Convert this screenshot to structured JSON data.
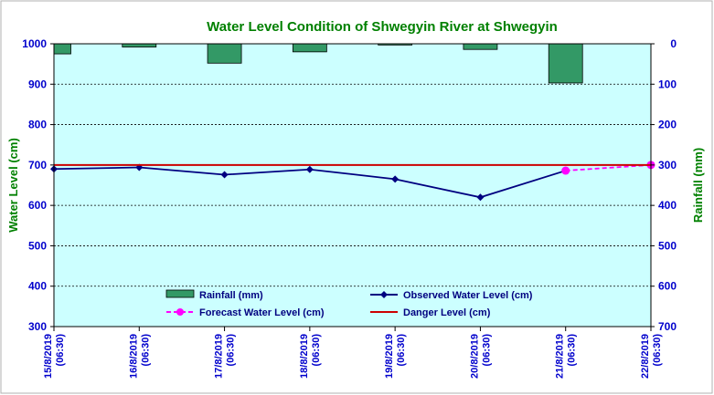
{
  "chart_data": {
    "type": "line",
    "title": "Water Level Condition of Shwegyin River at Shwegyin",
    "xlabel": "",
    "ylabel": "Water Level (cm)",
    "y2label": "Rainfall (mm)",
    "ylim": [
      300,
      1000
    ],
    "y2lim": [
      0,
      700
    ],
    "yticks": [
      "300",
      "400",
      "500",
      "600",
      "700",
      "800",
      "900",
      "1000"
    ],
    "y2ticks": [
      "0",
      "100",
      "200",
      "300",
      "400",
      "500",
      "600",
      "700"
    ],
    "y2_inverted": true,
    "categories": [
      {
        "date": "15/8/2019",
        "time": "(06:30)"
      },
      {
        "date": "16/8/2019",
        "time": "(06:30)"
      },
      {
        "date": "17/8/2019",
        "time": "(06:30)"
      },
      {
        "date": "18/8/2019",
        "time": "(06:30)"
      },
      {
        "date": "19/8/2019",
        "time": "(06:30)"
      },
      {
        "date": "20/8/2019",
        "time": "(06:30)"
      },
      {
        "date": "21/8/2019",
        "time": "(06:30)"
      },
      {
        "date": "22/8/2019",
        "time": "(06:30)"
      }
    ],
    "series": [
      {
        "name": "Rainfall (mm)",
        "kind": "bar",
        "axis": "right",
        "color": "#339966",
        "values": [
          25,
          8,
          48,
          20,
          3,
          14,
          97,
          null
        ]
      },
      {
        "name": "Observed Water Level (cm)",
        "kind": "line",
        "axis": "left",
        "color": "#000080",
        "marker": "diamond",
        "values": [
          690,
          694,
          676,
          689,
          665,
          620,
          686,
          null
        ]
      },
      {
        "name": "Forecast Water Level (cm)",
        "kind": "line",
        "axis": "left",
        "color": "#ff00ff",
        "marker": "circle",
        "dashed": true,
        "values": [
          null,
          null,
          null,
          null,
          null,
          null,
          686,
          700
        ]
      },
      {
        "name": "Danger Level (cm)",
        "kind": "line",
        "axis": "left",
        "color": "#cc0000",
        "values": [
          700,
          700,
          700,
          700,
          700,
          700,
          700,
          700
        ]
      }
    ],
    "grid": true,
    "legend_position": "bottom-center inside",
    "colors": {
      "title": "#008000",
      "axis_label": "#008000",
      "tick": "#0000cc",
      "plot_bg": "#ccffff",
      "frame_border": "#b0b0b0"
    }
  }
}
